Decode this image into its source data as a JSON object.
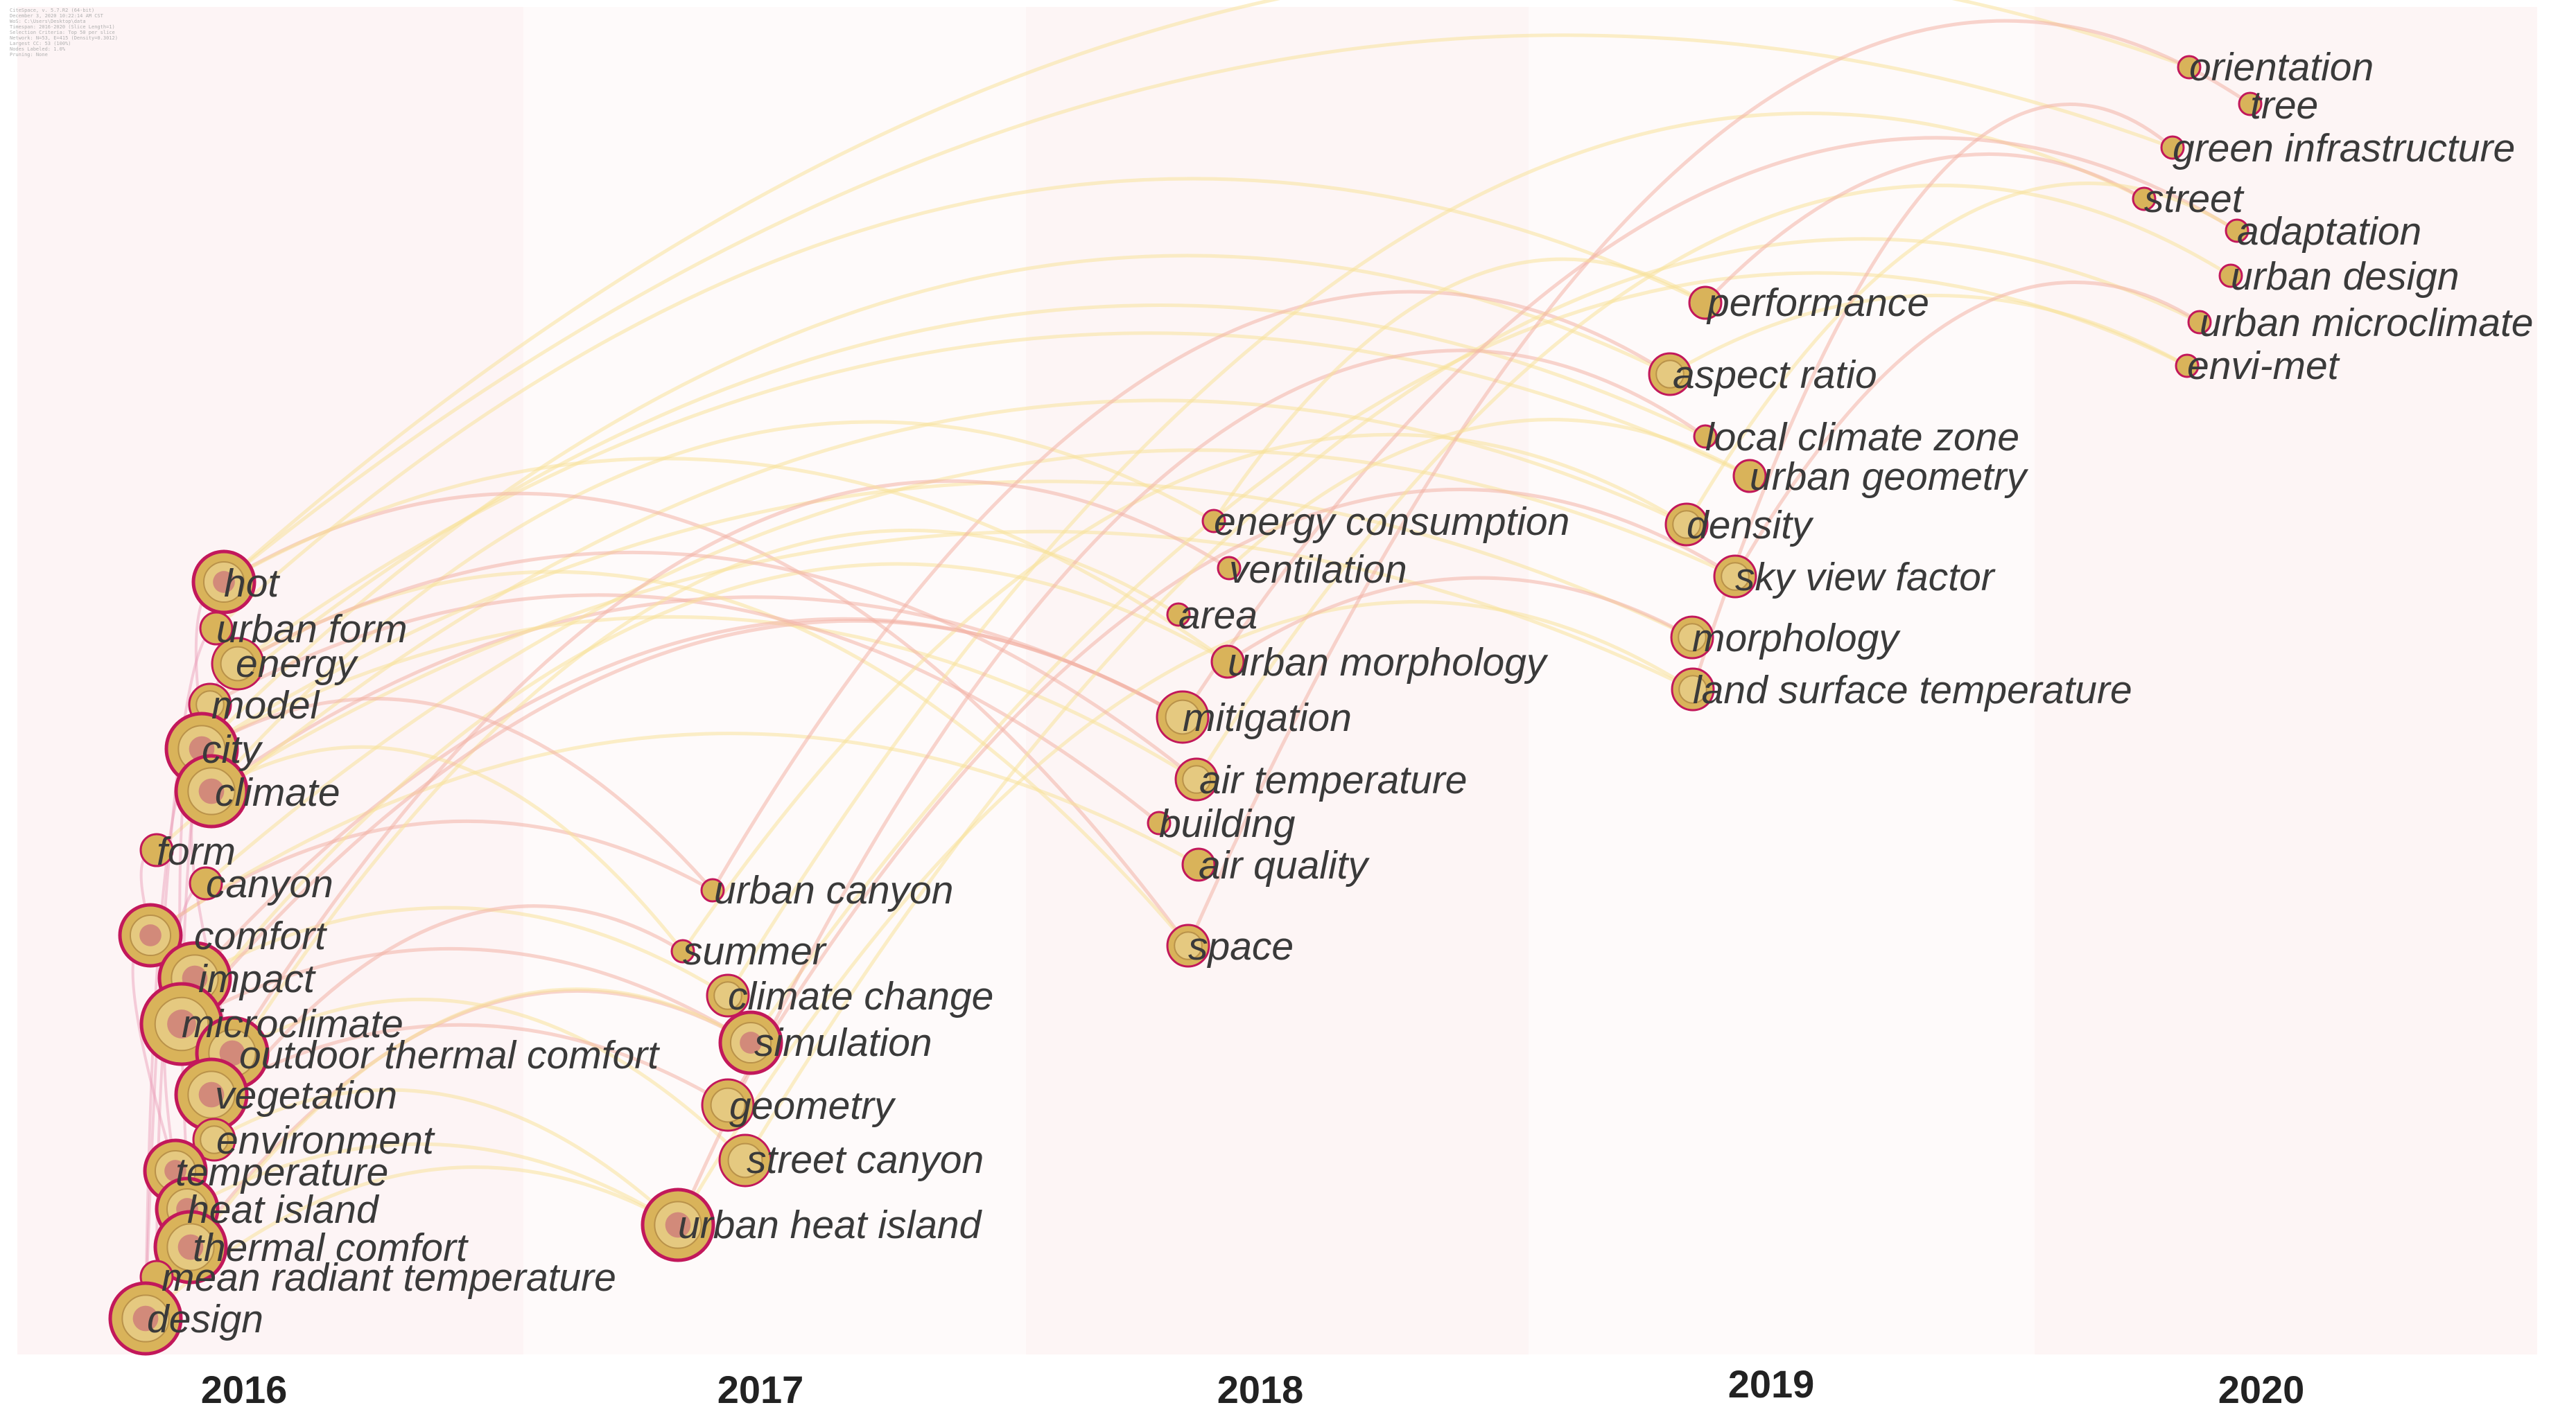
{
  "header_meta": [
    "CiteSpace, v. 5.7.R2 (64-bit)",
    "December 3, 2020 10:22:14 AM CST",
    "WoS: C:\\Users\\Desktop\\data",
    "Timespan: 2016-2020 (Slice Length=1)",
    "Selection Criteria: Top 50 per slice",
    "Network: N=53, E=415 (Density=0.3012)",
    "Largest CC: 53 (100%)",
    "Nodes Labeled: 1.0%",
    "Pruning: None"
  ],
  "years": [
    "2016",
    "2017",
    "2018",
    "2019",
    "2020"
  ],
  "colors": {
    "band_2016": "#fdf4f5",
    "band_2017": "#fefafa",
    "band_2018": "#fdf5f5",
    "band_2019": "#fefafa",
    "band_2020": "#fdf5f5",
    "link_early": "#e89ab6",
    "link_mid": "#f3b3a6",
    "link_late": "#f7e29a",
    "node_fill": "#d9b35a",
    "node_ring": "#c2185b",
    "label": "#3a3a3a"
  },
  "keywords": [
    {
      "label": "hot",
      "year": "2016",
      "weight": 5
    },
    {
      "label": "urban form",
      "year": "2016",
      "weight": 2
    },
    {
      "label": "energy",
      "year": "2016",
      "weight": 4
    },
    {
      "label": "model",
      "year": "2016",
      "weight": 3
    },
    {
      "label": "city",
      "year": "2016",
      "weight": 6
    },
    {
      "label": "climate",
      "year": "2016",
      "weight": 6
    },
    {
      "label": "form",
      "year": "2016",
      "weight": 2
    },
    {
      "label": "canyon",
      "year": "2016",
      "weight": 2
    },
    {
      "label": "comfort",
      "year": "2016",
      "weight": 5
    },
    {
      "label": "impact",
      "year": "2016",
      "weight": 6
    },
    {
      "label": "microclimate",
      "year": "2016",
      "weight": 7
    },
    {
      "label": "outdoor thermal comfort",
      "year": "2016",
      "weight": 6
    },
    {
      "label": "vegetation",
      "year": "2016",
      "weight": 6
    },
    {
      "label": "environment",
      "year": "2016",
      "weight": 3
    },
    {
      "label": "temperature",
      "year": "2016",
      "weight": 5
    },
    {
      "label": "heat island",
      "year": "2016",
      "weight": 5
    },
    {
      "label": "thermal comfort",
      "year": "2016",
      "weight": 6
    },
    {
      "label": "mean radiant temperature",
      "year": "2016",
      "weight": 2
    },
    {
      "label": "design",
      "year": "2016",
      "weight": 6
    },
    {
      "label": "urban canyon",
      "year": "2017",
      "weight": 1
    },
    {
      "label": "summer",
      "year": "2017",
      "weight": 1
    },
    {
      "label": "climate change",
      "year": "2017",
      "weight": 3
    },
    {
      "label": "simulation",
      "year": "2017",
      "weight": 5
    },
    {
      "label": "geometry",
      "year": "2017",
      "weight": 4
    },
    {
      "label": "street canyon",
      "year": "2017",
      "weight": 4
    },
    {
      "label": "urban heat island",
      "year": "2017",
      "weight": 6
    },
    {
      "label": "energy consumption",
      "year": "2018",
      "weight": 1
    },
    {
      "label": "ventilation",
      "year": "2018",
      "weight": 1
    },
    {
      "label": "area",
      "year": "2018",
      "weight": 1
    },
    {
      "label": "urban morphology",
      "year": "2018",
      "weight": 2
    },
    {
      "label": "mitigation",
      "year": "2018",
      "weight": 4
    },
    {
      "label": "air temperature",
      "year": "2018",
      "weight": 3
    },
    {
      "label": "building",
      "year": "2018",
      "weight": 1
    },
    {
      "label": "air quality",
      "year": "2018",
      "weight": 2
    },
    {
      "label": "space",
      "year": "2018",
      "weight": 3
    },
    {
      "label": "performance",
      "year": "2019",
      "weight": 2
    },
    {
      "label": "aspect ratio",
      "year": "2019",
      "weight": 3
    },
    {
      "label": "local climate zone",
      "year": "2019",
      "weight": 1
    },
    {
      "label": "urban geometry",
      "year": "2019",
      "weight": 2
    },
    {
      "label": "density",
      "year": "2019",
      "weight": 3
    },
    {
      "label": "sky view factor",
      "year": "2019",
      "weight": 3
    },
    {
      "label": "morphology",
      "year": "2019",
      "weight": 3
    },
    {
      "label": "land surface temperature",
      "year": "2019",
      "weight": 3
    },
    {
      "label": "orientation",
      "year": "2020",
      "weight": 1
    },
    {
      "label": "tree",
      "year": "2020",
      "weight": 1
    },
    {
      "label": "green infrastructure",
      "year": "2020",
      "weight": 1
    },
    {
      "label": "street",
      "year": "2020",
      "weight": 1
    },
    {
      "label": "adaptation",
      "year": "2020",
      "weight": 1
    },
    {
      "label": "urban design",
      "year": "2020",
      "weight": 1
    },
    {
      "label": "urban microclimate",
      "year": "2020",
      "weight": 1
    },
    {
      "label": "envi-met",
      "year": "2020",
      "weight": 1
    }
  ],
  "links": [
    [
      "hot",
      "orientation"
    ],
    [
      "hot",
      "green infrastructure"
    ],
    [
      "urban form",
      "performance"
    ],
    [
      "energy",
      "urban geometry"
    ],
    [
      "model",
      "local climate zone"
    ],
    [
      "city",
      "aspect ratio"
    ],
    [
      "climate",
      "energy consumption"
    ],
    [
      "climate",
      "mitigation"
    ],
    [
      "city",
      "air temperature"
    ],
    [
      "form",
      "density"
    ],
    [
      "canyon",
      "sky view factor"
    ],
    [
      "comfort",
      "urban canyon"
    ],
    [
      "impact",
      "climate change"
    ],
    [
      "microclimate",
      "simulation"
    ],
    [
      "outdoor thermal comfort",
      "street canyon"
    ],
    [
      "vegetation",
      "geometry"
    ],
    [
      "environment",
      "urban heat island"
    ],
    [
      "temperature",
      "summer"
    ],
    [
      "heat island",
      "urban heat island"
    ],
    [
      "thermal comfort",
      "simulation"
    ],
    [
      "design",
      "urban heat island"
    ],
    [
      "hot",
      "space"
    ],
    [
      "energy",
      "space"
    ],
    [
      "model",
      "building"
    ],
    [
      "city",
      "morphology"
    ],
    [
      "climate",
      "land surface temperature"
    ],
    [
      "comfort",
      "air quality"
    ],
    [
      "impact",
      "mitigation"
    ],
    [
      "microclimate",
      "urban morphology"
    ],
    [
      "outdoor thermal comfort",
      "ventilation"
    ],
    [
      "vegetation",
      "area"
    ],
    [
      "urban canyon",
      "aspect ratio"
    ],
    [
      "summer",
      "density"
    ],
    [
      "climate change",
      "street"
    ],
    [
      "simulation",
      "envi-met"
    ],
    [
      "geometry",
      "sky view factor"
    ],
    [
      "street canyon",
      "urban microclimate"
    ],
    [
      "urban heat island",
      "local climate zone"
    ],
    [
      "urban heat island",
      "land surface temperature"
    ],
    [
      "mitigation",
      "adaptation"
    ],
    [
      "air temperature",
      "urban design"
    ],
    [
      "space",
      "tree"
    ],
    [
      "energy consumption",
      "performance"
    ],
    [
      "urban morphology",
      "morphology"
    ],
    [
      "ventilation",
      "urban geometry"
    ],
    [
      "performance",
      "street"
    ],
    [
      "aspect ratio",
      "envi-met"
    ],
    [
      "sky view factor",
      "urban microclimate"
    ],
    [
      "density",
      "adaptation"
    ],
    [
      "land surface temperature",
      "green infrastructure"
    ],
    [
      "hot",
      "climate"
    ],
    [
      "city",
      "design"
    ],
    [
      "energy",
      "microclimate"
    ],
    [
      "model",
      "thermal comfort"
    ],
    [
      "comfort",
      "heat island"
    ],
    [
      "impact",
      "temperature"
    ],
    [
      "form",
      "vegetation"
    ],
    [
      "urban form",
      "design"
    ],
    [
      "canyon",
      "mean radiant temperature"
    ],
    [
      "climate",
      "outdoor thermal comfort"
    ],
    [
      "hot",
      "urban morphology"
    ],
    [
      "city",
      "urban canyon"
    ],
    [
      "climate",
      "summer"
    ],
    [
      "energy",
      "air temperature"
    ],
    [
      "design",
      "simulation"
    ],
    [
      "microclimate",
      "mitigation"
    ]
  ]
}
